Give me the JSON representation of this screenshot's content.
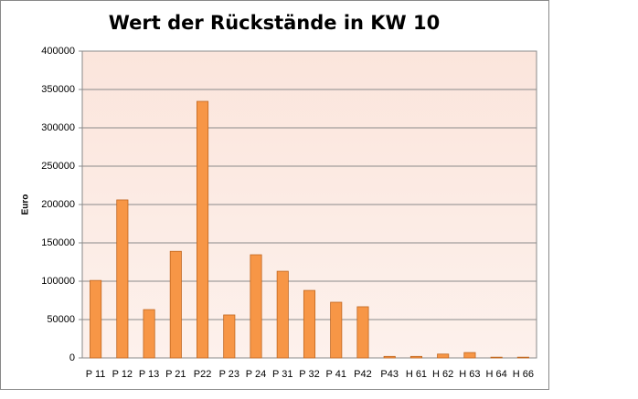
{
  "chart_data": {
    "type": "bar",
    "title": "Wert der Rückstände in KW 10",
    "y_label": "Euro",
    "categories": [
      "P 11",
      "P 12",
      "P 13",
      "P 21",
      "P22",
      "P 23",
      "P 24",
      "P 31",
      "P 32",
      "P 41",
      "P42",
      "P43",
      "H 61",
      "H 62",
      "H 63",
      "H 64",
      "H 66"
    ],
    "values": [
      101000,
      206000,
      63000,
      139000,
      334500,
      56000,
      134500,
      113000,
      88000,
      72600,
      66700,
      2000,
      2000,
      5000,
      7000,
      1000,
      1000
    ],
    "color": "#f79646",
    "ylim": [
      0,
      400000
    ],
    "yticks": [
      0,
      50000,
      100000,
      150000,
      200000,
      250000,
      300000,
      350000,
      400000
    ],
    "grid": true
  }
}
